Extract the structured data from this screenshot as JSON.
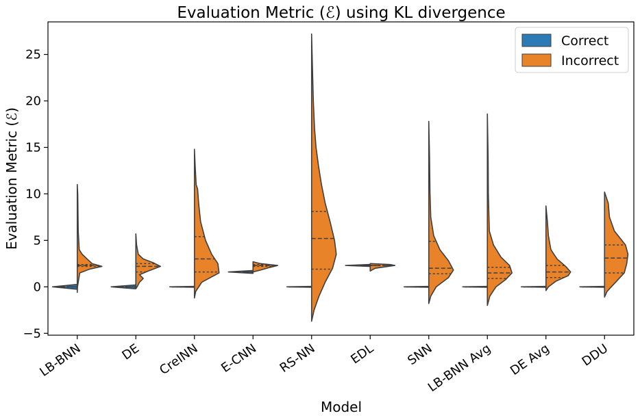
{
  "chart_data": {
    "type": "violin",
    "title": "Evaluation Metric (ℰ) using KL divergence",
    "xlabel": "Model",
    "ylabel": "Evaluation Metric (ℰ)",
    "ylim": [
      -5.2,
      28.5
    ],
    "yticks": [
      -5,
      0,
      5,
      10,
      15,
      20,
      25
    ],
    "ytick_labels": [
      "−5",
      "0",
      "5",
      "10",
      "15",
      "20",
      "25"
    ],
    "categories": [
      "LB-BNN",
      "DE",
      "CreINN",
      "E-CNN",
      "RS-NN",
      "EDL",
      "SNN",
      "LB-BNN Avg",
      "DE Avg",
      "DDU"
    ],
    "legend": {
      "position": "top-right",
      "entries": [
        {
          "label": "Correct",
          "color": "#2d7bb6"
        },
        {
          "label": "Incorrect",
          "color": "#e8832a"
        }
      ]
    },
    "series": [
      {
        "name": "Correct",
        "color": "#2d7bb6",
        "side": "left",
        "violins": [
          {
            "model": "LB-BNN",
            "profile": [
              [
                -0.25,
                0.05
              ],
              [
                0,
                1.0
              ],
              [
                0.25,
                0.05
              ]
            ],
            "quartiles": [
              0.0,
              0.0,
              0.0
            ]
          },
          {
            "model": "DE",
            "profile": [
              [
                -0.2,
                0.05
              ],
              [
                0,
                1.0
              ],
              [
                0.2,
                0.05
              ]
            ],
            "quartiles": [
              0.0,
              0.0,
              0.0
            ]
          },
          {
            "model": "CreINN",
            "profile": [
              [
                -0.05,
                0.05
              ],
              [
                0,
                1.0
              ],
              [
                0.05,
                0.05
              ]
            ],
            "quartiles": [
              0.0,
              0.0,
              0.0
            ]
          },
          {
            "model": "E-CNN",
            "profile": [
              [
                1.45,
                0.05
              ],
              [
                1.6,
                1.0
              ],
              [
                1.75,
                0.05
              ]
            ],
            "quartiles": [
              1.6,
              1.6,
              1.6
            ]
          },
          {
            "model": "RS-NN",
            "profile": [
              [
                -0.05,
                0.05
              ],
              [
                0,
                1.0
              ],
              [
                0.05,
                0.05
              ]
            ],
            "quartiles": [
              0.0,
              0.0,
              0.0
            ]
          },
          {
            "model": "EDL",
            "profile": [
              [
                2.2,
                0.05
              ],
              [
                2.3,
                1.0
              ],
              [
                2.4,
                0.05
              ]
            ],
            "quartiles": [
              2.3,
              2.3,
              2.3
            ]
          },
          {
            "model": "SNN",
            "profile": [
              [
                -0.05,
                0.05
              ],
              [
                0,
                1.0
              ],
              [
                0.05,
                0.05
              ]
            ],
            "quartiles": [
              0.0,
              0.0,
              0.0
            ]
          },
          {
            "model": "LB-BNN Avg",
            "profile": [
              [
                -0.05,
                0.05
              ],
              [
                0,
                1.0
              ],
              [
                0.05,
                0.05
              ]
            ],
            "quartiles": [
              0.0,
              0.0,
              0.0
            ]
          },
          {
            "model": "DE Avg",
            "profile": [
              [
                -0.05,
                0.05
              ],
              [
                0,
                1.0
              ],
              [
                0.05,
                0.05
              ]
            ],
            "quartiles": [
              0.0,
              0.0,
              0.0
            ]
          },
          {
            "model": "DDU",
            "profile": [
              [
                -0.05,
                0.05
              ],
              [
                0,
                1.0
              ],
              [
                0.05,
                0.05
              ]
            ],
            "quartiles": [
              0.0,
              0.0,
              0.0
            ]
          }
        ]
      },
      {
        "name": "Incorrect",
        "color": "#e8832a",
        "side": "right",
        "violins": [
          {
            "model": "LB-BNN",
            "profile": [
              [
                -0.6,
                0.0
              ],
              [
                0,
                0.01
              ],
              [
                1.5,
                0.1
              ],
              [
                1.9,
                0.5
              ],
              [
                2.2,
                1.0
              ],
              [
                2.5,
                0.6
              ],
              [
                3.0,
                0.4
              ],
              [
                3.5,
                0.2
              ],
              [
                4.0,
                0.08
              ],
              [
                6.0,
                0.04
              ],
              [
                8.0,
                0.03
              ],
              [
                10.0,
                0.02
              ],
              [
                11.0,
                0.0
              ]
            ],
            "quartiles": [
              2.2,
              2.3,
              2.4
            ]
          },
          {
            "model": "DE",
            "profile": [
              [
                -0.2,
                0.0
              ],
              [
                0,
                0.05
              ],
              [
                0.5,
                0.15
              ],
              [
                0.9,
                0.3
              ],
              [
                1.3,
                0.15
              ],
              [
                1.7,
                0.5
              ],
              [
                2.2,
                1.0
              ],
              [
                2.6,
                0.7
              ],
              [
                3.0,
                0.3
              ],
              [
                3.5,
                0.1
              ],
              [
                4.5,
                0.03
              ],
              [
                5.7,
                0.0
              ]
            ],
            "quartiles": [
              1.6,
              2.2,
              2.5
            ]
          },
          {
            "model": "CreINN",
            "profile": [
              [
                -1.2,
                0.0
              ],
              [
                -0.5,
                0.05
              ],
              [
                0.5,
                0.3
              ],
              [
                1.5,
                1.0
              ],
              [
                2.5,
                0.95
              ],
              [
                3.5,
                0.7
              ],
              [
                5.0,
                0.45
              ],
              [
                7.0,
                0.25
              ],
              [
                9.0,
                0.17
              ],
              [
                10.5,
                0.13
              ],
              [
                11.0,
                0.07
              ],
              [
                13.0,
                0.03
              ],
              [
                14.8,
                0.0
              ]
            ],
            "quartiles": [
              1.6,
              3.0,
              5.4
            ]
          },
          {
            "model": "E-CNN",
            "profile": [
              [
                1.6,
                0.0
              ],
              [
                1.8,
                0.3
              ],
              [
                2.1,
                0.7
              ],
              [
                2.3,
                1.0
              ],
              [
                2.5,
                0.3
              ],
              [
                2.7,
                0.0
              ]
            ],
            "quartiles": [
              2.2,
              2.3,
              2.4
            ]
          },
          {
            "model": "RS-NN",
            "profile": [
              [
                -3.7,
                0.0
              ],
              [
                -2.5,
                0.1
              ],
              [
                -1.0,
                0.3
              ],
              [
                0.5,
                0.55
              ],
              [
                2.0,
                0.85
              ],
              [
                3.5,
                1.0
              ],
              [
                5.0,
                0.93
              ],
              [
                7.0,
                0.75
              ],
              [
                9.0,
                0.55
              ],
              [
                11.0,
                0.4
              ],
              [
                13.0,
                0.28
              ],
              [
                15.0,
                0.18
              ],
              [
                17.0,
                0.12
              ],
              [
                20.0,
                0.07
              ],
              [
                23.0,
                0.04
              ],
              [
                25.0,
                0.02
              ],
              [
                27.2,
                0.0
              ]
            ],
            "quartiles": [
              1.9,
              5.2,
              8.1
            ]
          },
          {
            "model": "EDL",
            "profile": [
              [
                1.7,
                0.0
              ],
              [
                2.0,
                0.2
              ],
              [
                2.3,
                1.0
              ],
              [
                2.4,
                0.8
              ],
              [
                2.5,
                0.0
              ]
            ],
            "quartiles": [
              2.3,
              2.3,
              2.3
            ]
          },
          {
            "model": "SNN",
            "profile": [
              [
                -1.8,
                0.0
              ],
              [
                -1.0,
                0.08
              ],
              [
                0.0,
                0.3
              ],
              [
                1.0,
                0.8
              ],
              [
                1.8,
                1.0
              ],
              [
                2.8,
                0.8
              ],
              [
                4.0,
                0.45
              ],
              [
                5.5,
                0.2
              ],
              [
                7.5,
                0.08
              ],
              [
                10.0,
                0.05
              ],
              [
                14.0,
                0.03
              ],
              [
                17.8,
                0.0
              ]
            ],
            "quartiles": [
              1.4,
              2.0,
              4.9
            ]
          },
          {
            "model": "LB-BNN Avg",
            "profile": [
              [
                -2.0,
                0.0
              ],
              [
                -1.0,
                0.1
              ],
              [
                0.0,
                0.35
              ],
              [
                0.8,
                0.75
              ],
              [
                1.5,
                1.0
              ],
              [
                2.3,
                0.9
              ],
              [
                3.2,
                0.55
              ],
              [
                4.5,
                0.25
              ],
              [
                6.0,
                0.08
              ],
              [
                10.0,
                0.04
              ],
              [
                14.0,
                0.03
              ],
              [
                18.6,
                0.0
              ]
            ],
            "quartiles": [
              0.9,
              1.5,
              2.1
            ]
          },
          {
            "model": "DE Avg",
            "profile": [
              [
                -0.4,
                0.0
              ],
              [
                0.0,
                0.1
              ],
              [
                0.6,
                0.4
              ],
              [
                1.2,
                0.9
              ],
              [
                1.6,
                1.0
              ],
              [
                2.2,
                0.8
              ],
              [
                3.0,
                0.45
              ],
              [
                4.0,
                0.2
              ],
              [
                5.5,
                0.1
              ],
              [
                7.0,
                0.06
              ],
              [
                8.7,
                0.0
              ]
            ],
            "quartiles": [
              1.0,
              1.6,
              2.3
            ]
          },
          {
            "model": "DDU",
            "profile": [
              [
                -1.1,
                0.0
              ],
              [
                -0.5,
                0.1
              ],
              [
                0.5,
                0.45
              ],
              [
                1.5,
                0.8
              ],
              [
                2.5,
                0.9
              ],
              [
                3.5,
                0.95
              ],
              [
                4.5,
                0.85
              ],
              [
                6.0,
                0.4
              ],
              [
                7.5,
                0.2
              ],
              [
                9.0,
                0.15
              ],
              [
                10.2,
                0.0
              ]
            ],
            "quartiles": [
              1.5,
              3.1,
              4.5
            ]
          }
        ]
      }
    ]
  }
}
